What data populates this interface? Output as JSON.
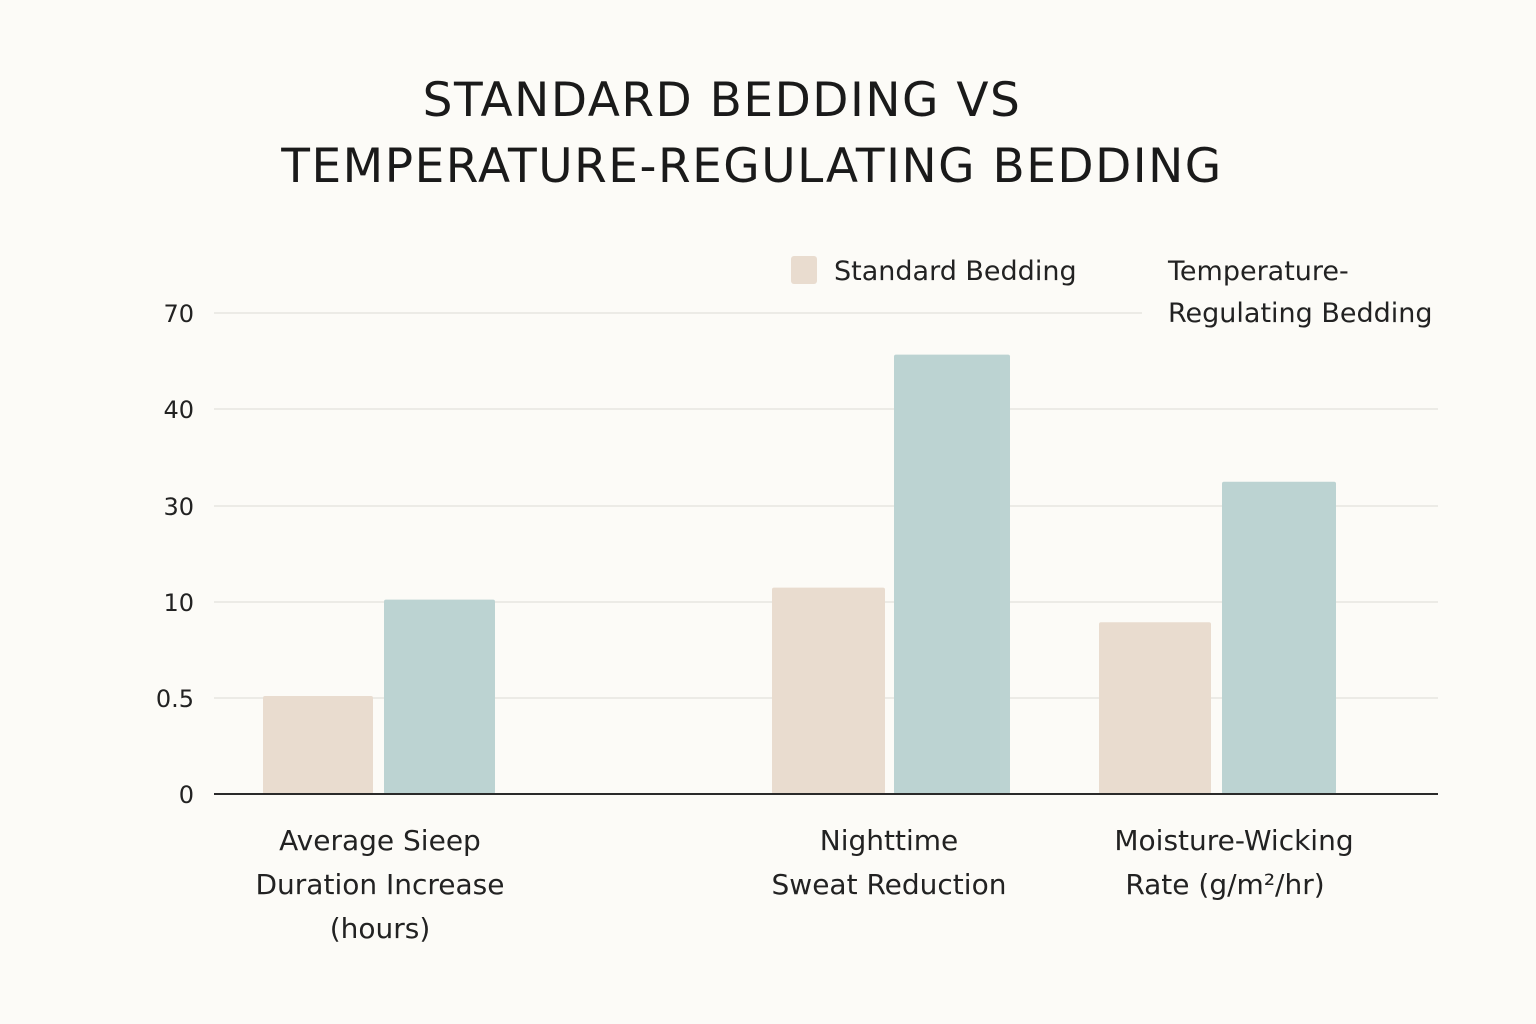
{
  "chart_data": {
    "type": "bar",
    "title_lines": [
      "STANDARD BEDDING VS",
      "TEMPERATURE-REGULATING BEDDING"
    ],
    "y_ticks": [
      "0",
      "0.5",
      "10",
      "30",
      "40",
      "70"
    ],
    "categories": [
      [
        "Average Sieep",
        "Duration Increase",
        "(hours)"
      ],
      [
        "Nighttime",
        "Sweat Reduction"
      ],
      [
        "Moisture-Wicking",
        "Rate (g/m²/hr)"
      ]
    ],
    "series": [
      {
        "name": "Standard Bedding",
        "color": "#e9dccf",
        "values": [
          0.7,
          13,
          8
        ]
      },
      {
        "name_lines": [
          "Temperature-",
          "Regulating Bedding"
        ],
        "color": "#bcd3d2",
        "values": [
          10.5,
          57,
          32.5
        ]
      }
    ],
    "legend_position": "top-right",
    "grid": true
  }
}
